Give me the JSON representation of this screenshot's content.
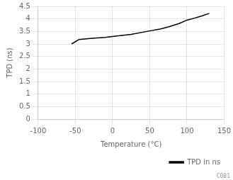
{
  "chart_data": {
    "type": "line",
    "x_label": "Temperature (°C)",
    "y_label": "TPD (ns)",
    "x": [
      -55,
      -45,
      -30,
      -10,
      0,
      25,
      50,
      65,
      75,
      90,
      100,
      110,
      120,
      130
    ],
    "series": [
      {
        "name": "TPD in ns",
        "color": "#000000",
        "values": [
          3.0,
          3.18,
          3.22,
          3.26,
          3.3,
          3.38,
          3.52,
          3.6,
          3.68,
          3.82,
          3.95,
          4.03,
          4.12,
          4.22
        ]
      }
    ],
    "xlim": [
      -100,
      150
    ],
    "ylim": [
      0,
      4.5
    ],
    "xticks": [
      -100,
      -50,
      0,
      50,
      100,
      150
    ],
    "yticks": [
      0,
      0.5,
      1,
      1.5,
      2,
      2.5,
      3,
      3.5,
      4,
      4.5
    ],
    "grid": true,
    "legend": "lower right",
    "annotations": [
      "C001"
    ]
  }
}
